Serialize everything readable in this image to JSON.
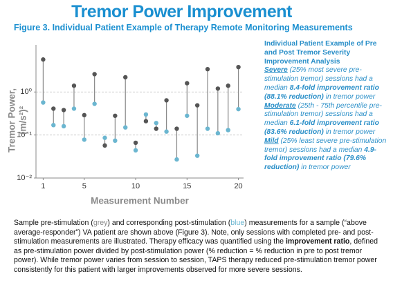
{
  "header": {
    "title": "Tremor Power Improvement",
    "subtitle": "Figure 3. Individual Patient Example of Therapy Remote Monitoring Measurements"
  },
  "chart_data": {
    "type": "dumbbell",
    "xlabel": "Measurement Number",
    "ylabel": [
      "Tremor Power,",
      "(m/s²)²"
    ],
    "x": [
      1,
      2,
      3,
      4,
      5,
      6,
      7,
      8,
      9,
      10,
      11,
      12,
      13,
      14,
      15,
      16,
      17,
      18,
      19,
      20
    ],
    "series": [
      {
        "color": "#555555",
        "values": [
          5.7,
          0.41,
          0.38,
          1.4,
          0.29,
          2.6,
          0.057,
          0.28,
          2.2,
          0.066,
          0.21,
          0.14,
          0.64,
          0.14,
          1.6,
          0.49,
          3.4,
          1.2,
          1.4,
          3.8
        ]
      },
      {
        "color": "#6bb6d0",
        "values": [
          0.57,
          0.17,
          0.16,
          0.41,
          0.078,
          0.53,
          0.086,
          0.074,
          0.15,
          0.044,
          0.3,
          0.19,
          0.12,
          0.027,
          0.28,
          0.033,
          0.14,
          0.11,
          0.13,
          0.4
        ]
      }
    ],
    "stem_color": "#888888",
    "xlim": [
      0.3,
      20.5
    ],
    "xticks": [
      1,
      5,
      10,
      15,
      20
    ],
    "ylim": [
      0.01,
      10
    ],
    "log_y": true,
    "yticks": [
      {
        "value": 0.01,
        "label": "10⁻²"
      },
      {
        "value": 0.1,
        "label": "10⁻¹"
      },
      {
        "value": 1,
        "label": "10⁰"
      }
    ],
    "grid": true
  },
  "side_note": {
    "heading": "Individual Patient Example of Pre and Post Tremor Severity Improvement Analysis",
    "paragraphs": [
      [
        {
          "text": "Severe",
          "style": "term"
        },
        {
          "text": " (25% most severe pre-stimulation tremor) sessions had a median ",
          "style": "plain"
        },
        {
          "text": "8.4-fold improvement ratio (88.1% reduction)",
          "style": "strong"
        },
        {
          "text": " in tremor power",
          "style": "plain"
        }
      ],
      [
        {
          "text": "Moderate",
          "style": "term"
        },
        {
          "text": " (25th - 75th percentile pre-stimulation tremor) sessions had a median ",
          "style": "plain"
        },
        {
          "text": "6.1-fold improvement ratio (83.6% reduction)",
          "style": "strong"
        },
        {
          "text": " in tremor power",
          "style": "plain"
        }
      ],
      [
        {
          "text": "Mild",
          "style": "term"
        },
        {
          "text": " (25% least severe pre-stimulation tremor) sessions had a median ",
          "style": "plain"
        },
        {
          "text": "4.9-fold improvement ratio (79.6% reduction)",
          "style": "strong"
        },
        {
          "text": " in tremor power",
          "style": "plain"
        }
      ]
    ]
  },
  "caption": [
    {
      "text": "Sample pre-stimulation (",
      "style": "plain"
    },
    {
      "text": "grey",
      "style": "grey"
    },
    {
      "text": ") and corresponding post-stimulation (",
      "style": "plain"
    },
    {
      "text": "blue",
      "style": "blue"
    },
    {
      "text": ") measurements for a sample (“above average-responder”) VA patient are shown above (Figure 3). Note, only sessions with completed pre- and post-stimulation measurements are illustrated. Therapy efficacy was quantified using the ",
      "style": "plain"
    },
    {
      "text": "improvement ratio",
      "style": "strong"
    },
    {
      "text": ", defined as pre-stimulation power divided by post-stimulation power (% reduction = % reduction in pre to post tremor power). While tremor power varies from session to session, TAPS therapy reduced pre-stimulation tremor power consistently for this patient with larger improvements observed for more severe sessions.",
      "style": "plain"
    }
  ]
}
